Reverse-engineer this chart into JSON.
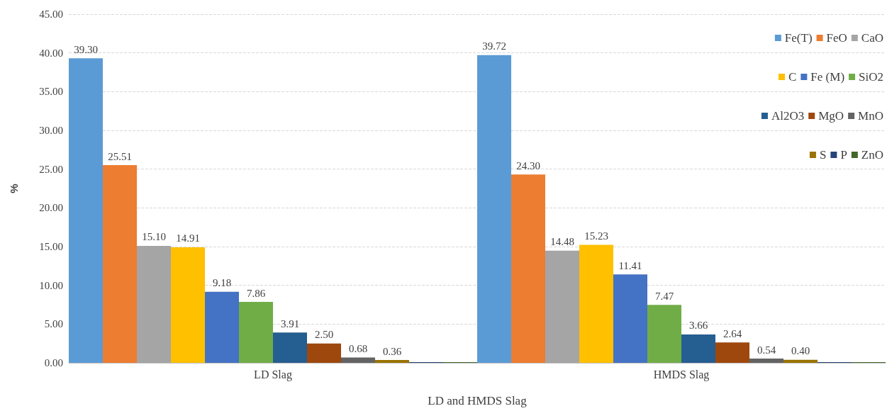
{
  "chart_data": {
    "type": "bar",
    "xlabel": "LD and HMDS Slag",
    "ylabel": "%",
    "categories": [
      "LD Slag",
      "HMDS Slag"
    ],
    "series": [
      {
        "name": "Fe(T)",
        "color": "#5b9bd5",
        "values": [
          39.3,
          39.72
        ],
        "value_labels": [
          "39.30",
          "39.72"
        ]
      },
      {
        "name": "FeO",
        "color": "#ed7d31",
        "values": [
          25.51,
          24.3
        ],
        "value_labels": [
          "25.51",
          "24.30"
        ]
      },
      {
        "name": "CaO",
        "color": "#a5a5a5",
        "values": [
          15.1,
          14.48
        ],
        "value_labels": [
          "15.10",
          "14.48"
        ]
      },
      {
        "name": "C",
        "color": "#ffc000",
        "values": [
          14.91,
          15.23
        ],
        "value_labels": [
          "14.91",
          "15.23"
        ]
      },
      {
        "name": "Fe (M)",
        "color": "#4472c4",
        "values": [
          9.18,
          11.41
        ],
        "value_labels": [
          "9.18",
          "11.41"
        ]
      },
      {
        "name": "SiO2",
        "color": "#70ad47",
        "values": [
          7.86,
          7.47
        ],
        "value_labels": [
          "7.86",
          "7.47"
        ]
      },
      {
        "name": "Al2O3",
        "color": "#255e91",
        "values": [
          3.91,
          3.66
        ],
        "value_labels": [
          "3.91",
          "3.66"
        ]
      },
      {
        "name": "MgO",
        "color": "#9e480e",
        "values": [
          2.5,
          2.64
        ],
        "value_labels": [
          "2.50",
          "2.64"
        ]
      },
      {
        "name": "MnO",
        "color": "#636363",
        "values": [
          0.68,
          0.54
        ],
        "value_labels": [
          "0.68",
          "0.54"
        ]
      },
      {
        "name": "S",
        "color": "#997300",
        "values": [
          0.36,
          0.4
        ],
        "value_labels": [
          "0.36",
          "0.40"
        ]
      },
      {
        "name": "P",
        "color": "#264478",
        "values": [
          0.1,
          0.1
        ],
        "value_labels": [
          null,
          null
        ]
      },
      {
        "name": "ZnO",
        "color": "#43682b",
        "values": [
          0.1,
          0.1
        ],
        "value_labels": [
          null,
          null
        ]
      }
    ],
    "ylim": [
      0,
      45
    ],
    "yticks": [
      {
        "value": 0,
        "label": "0.00"
      },
      {
        "value": 5,
        "label": "5.00"
      },
      {
        "value": 10,
        "label": "10.00"
      },
      {
        "value": 15,
        "label": "15.00"
      },
      {
        "value": 20,
        "label": "20.00"
      },
      {
        "value": 25,
        "label": "25.00"
      },
      {
        "value": 30,
        "label": "30.00"
      },
      {
        "value": 35,
        "label": "35.00"
      },
      {
        "value": 40,
        "label": "40.00"
      },
      {
        "value": 45,
        "label": "45.00"
      }
    ],
    "grid": "y",
    "legend": "top right"
  }
}
